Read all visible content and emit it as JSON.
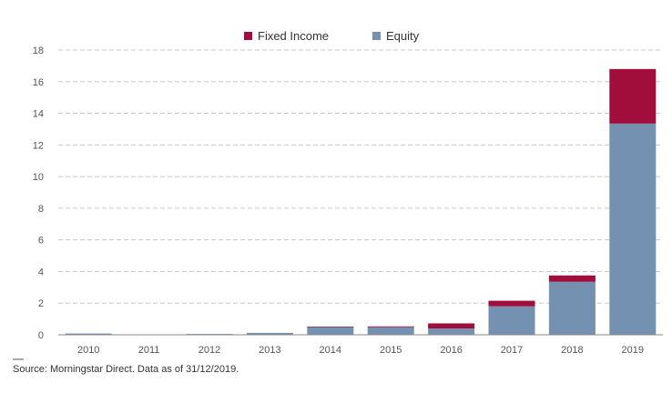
{
  "chart_data": {
    "type": "bar",
    "stacked": true,
    "title": "",
    "xlabel": "",
    "ylabel": "",
    "categories": [
      "2010",
      "2011",
      "2012",
      "2013",
      "2014",
      "2015",
      "2016",
      "2017",
      "2018",
      "2019"
    ],
    "series": [
      {
        "name": "Equity",
        "color": "#7591b2",
        "values": [
          0.08,
          0.02,
          0.05,
          0.12,
          0.5,
          0.48,
          0.4,
          1.8,
          3.35,
          13.35
        ]
      },
      {
        "name": "Fixed Income",
        "color": "#a10e3c",
        "values": [
          0.0,
          0.0,
          0.0,
          0.0,
          0.02,
          0.05,
          0.32,
          0.35,
          0.4,
          3.45
        ]
      }
    ],
    "legend_order": [
      "Fixed Income",
      "Equity"
    ],
    "ylim": [
      0,
      18
    ],
    "yticks": [
      0,
      2,
      4,
      6,
      8,
      10,
      12,
      14,
      16,
      18
    ],
    "grid": true,
    "legend_position": "top-center",
    "source": "Source: Morningstar Direct. Data as of 31/12/2019."
  }
}
